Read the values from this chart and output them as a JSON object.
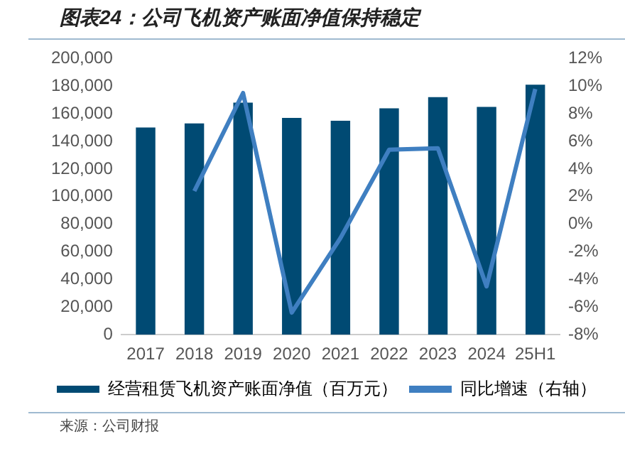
{
  "chart_data": {
    "type": "bar",
    "title": "图表24：公司飞机资产账面净值保持稳定",
    "categories": [
      "2017",
      "2018",
      "2019",
      "2020",
      "2021",
      "2022",
      "2023",
      "2024",
      "25H1"
    ],
    "series": [
      {
        "name": "经营租赁飞机资产账面净值（百万元）",
        "color": "#004a73",
        "values": [
          150000,
          153000,
          168000,
          157000,
          155000,
          164000,
          172000,
          165000,
          181000
        ]
      },
      {
        "name": "同比增速（右轴）",
        "type": "line",
        "axis": "y2",
        "color": "#3f7fc1",
        "values": [
          null,
          2.4,
          9.5,
          -6.4,
          -1.0,
          5.4,
          5.5,
          -4.5,
          9.8
        ]
      }
    ],
    "ylim": [
      0,
      200000
    ],
    "yticks": [
      0,
      {
        "value": 20000,
        "label": "20,000"
      },
      {
        "value": 40000,
        "label": "40,000"
      },
      {
        "value": 60000,
        "label": "60,000"
      },
      {
        "value": 80000,
        "label": "80,000"
      },
      {
        "value": 100000,
        "label": "100,000"
      },
      {
        "value": 120000,
        "label": "120,000"
      },
      {
        "value": 140000,
        "label": "140,000"
      },
      {
        "value": 160000,
        "label": "160,000"
      },
      {
        "value": 180000,
        "label": "180,000"
      },
      {
        "value": 200000,
        "label": "200,000"
      }
    ],
    "y2lim": [
      -8,
      12
    ],
    "y2ticks": [
      {
        "value": -8,
        "label": "-8%"
      },
      {
        "value": -6,
        "label": "-6%"
      },
      {
        "value": -4,
        "label": "-4%"
      },
      {
        "value": -2,
        "label": "-2%"
      },
      {
        "value": 0,
        "label": "0%"
      },
      {
        "value": 2,
        "label": "2%"
      },
      {
        "value": 4,
        "label": "4%"
      },
      {
        "value": 6,
        "label": "6%"
      },
      {
        "value": 8,
        "label": "8%"
      },
      {
        "value": 10,
        "label": "10%"
      },
      {
        "value": 12,
        "label": "12%"
      }
    ],
    "legend": "bottom",
    "grid": false,
    "marker": "none",
    "annotations": [
      "来源：公司财报"
    ]
  }
}
